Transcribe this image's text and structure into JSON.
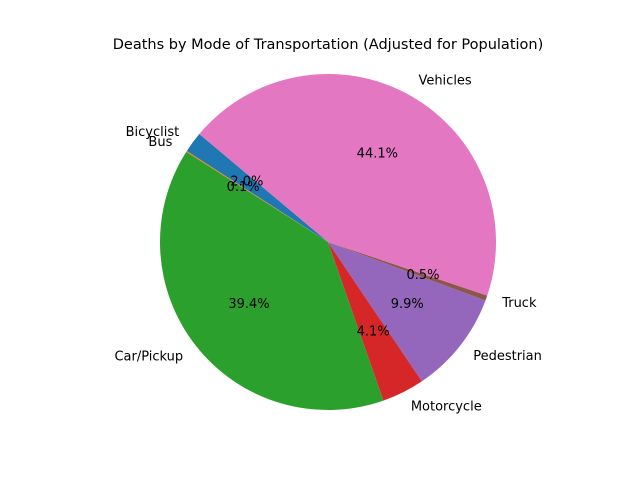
{
  "chart_data": {
    "type": "pie",
    "title": "Deaths by Mode of Transportation (Adjusted for Population)",
    "start_angle_deg": 140,
    "direction": "counterclockwise",
    "slices": [
      {
        "label": "Bicyclist",
        "percent": 2.0,
        "pct_text": "2.0%",
        "color": "#1f77b4"
      },
      {
        "label": "Bus",
        "percent": 0.1,
        "pct_text": "0.1%",
        "color": "#ff7f0e"
      },
      {
        "label": "Car/Pickup",
        "percent": 39.4,
        "pct_text": "39.4%",
        "color": "#2ca02c"
      },
      {
        "label": "Motorcycle",
        "percent": 4.1,
        "pct_text": "4.1%",
        "color": "#d62728"
      },
      {
        "label": "Pedestrian",
        "percent": 9.9,
        "pct_text": "9.9%",
        "color": "#9467bd"
      },
      {
        "label": "Truck",
        "percent": 0.5,
        "pct_text": "0.5%",
        "color": "#8c564b"
      },
      {
        "label": "Vehicles",
        "percent": 44.1,
        "pct_text": "44.1%",
        "color": "#e377c2"
      }
    ]
  }
}
